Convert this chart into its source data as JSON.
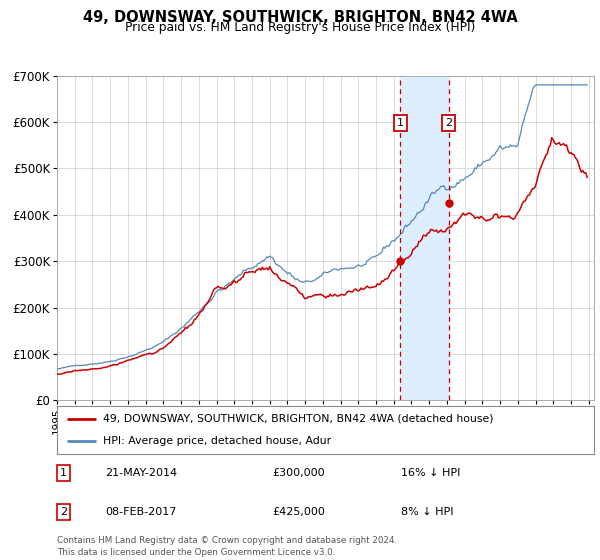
{
  "title": "49, DOWNSWAY, SOUTHWICK, BRIGHTON, BN42 4WA",
  "subtitle": "Price paid vs. HM Land Registry's House Price Index (HPI)",
  "ylim": [
    0,
    700000
  ],
  "yticks": [
    0,
    100000,
    200000,
    300000,
    400000,
    500000,
    600000,
    700000
  ],
  "ytick_labels": [
    "£0",
    "£100K",
    "£200K",
    "£300K",
    "£400K",
    "£500K",
    "£600K",
    "£700K"
  ],
  "sale1_x": 2014.38,
  "sale2_x": 2017.1,
  "sale1_price": 300000,
  "sale2_price": 425000,
  "sale1_label": "1",
  "sale2_label": "2",
  "legend_property": "49, DOWNSWAY, SOUTHWICK, BRIGHTON, BN42 4WA (detached house)",
  "legend_hpi": "HPI: Average price, detached house, Adur",
  "property_color": "#cc0000",
  "hpi_color": "#5588bb",
  "shade_color": "#ddeeff",
  "background_color": "#ffffff",
  "grid_color": "#cccccc",
  "footnote_line1": "Contains HM Land Registry data © Crown copyright and database right 2024.",
  "footnote_line2": "This data is licensed under the Open Government Licence v3.0."
}
